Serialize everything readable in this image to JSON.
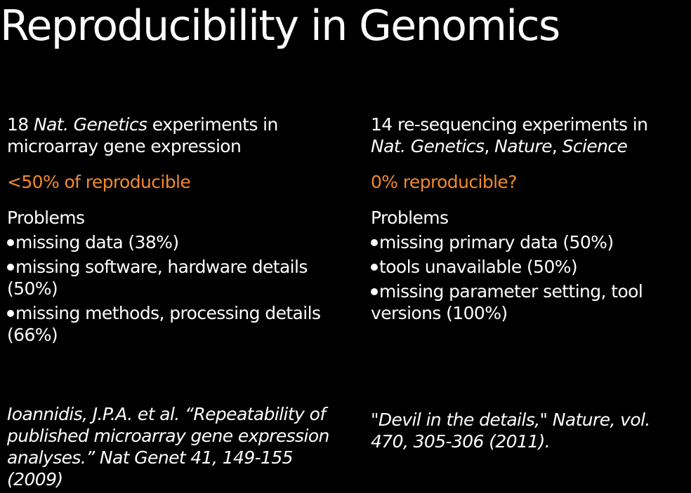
{
  "title": "Reproducibility in Genomics",
  "left": {
    "intro_count": "18 ",
    "intro_journal": "Nat. Genetics",
    "intro_rest": " experiments in microarray gene expression",
    "stat": "<50% of reproducible",
    "problems_label": "Problems",
    "problems": [
      "missing data (38%)",
      "missing software, hardware details (50%)",
      "missing methods, processing details (66%)"
    ],
    "citation": "Ioannidis, J.P.A. et al. “Repeatability of published microarray gene expression analyses.” Nat Genet 41, 149-155 (2009)"
  },
  "right": {
    "intro_text": "14 re-sequencing experiments in ",
    "intro_j1": "Nat. Genetics",
    "intro_sep1": ", ",
    "intro_j2": "Nature",
    "intro_sep2": ", ",
    "intro_j3": "Science",
    "stat": "0% reproducible?",
    "problems_label": "Problems",
    "problems": [
      "missing primary data (50%)",
      "tools unavailable (50%)",
      "missing parameter setting, tool versions (100%)"
    ],
    "citation": "\"Devil in the details,\" Nature, vol. 470, 305-306 (2011)."
  },
  "colors": {
    "background": "#000000",
    "text": "#ffffff",
    "accent": "#f28a2e"
  }
}
